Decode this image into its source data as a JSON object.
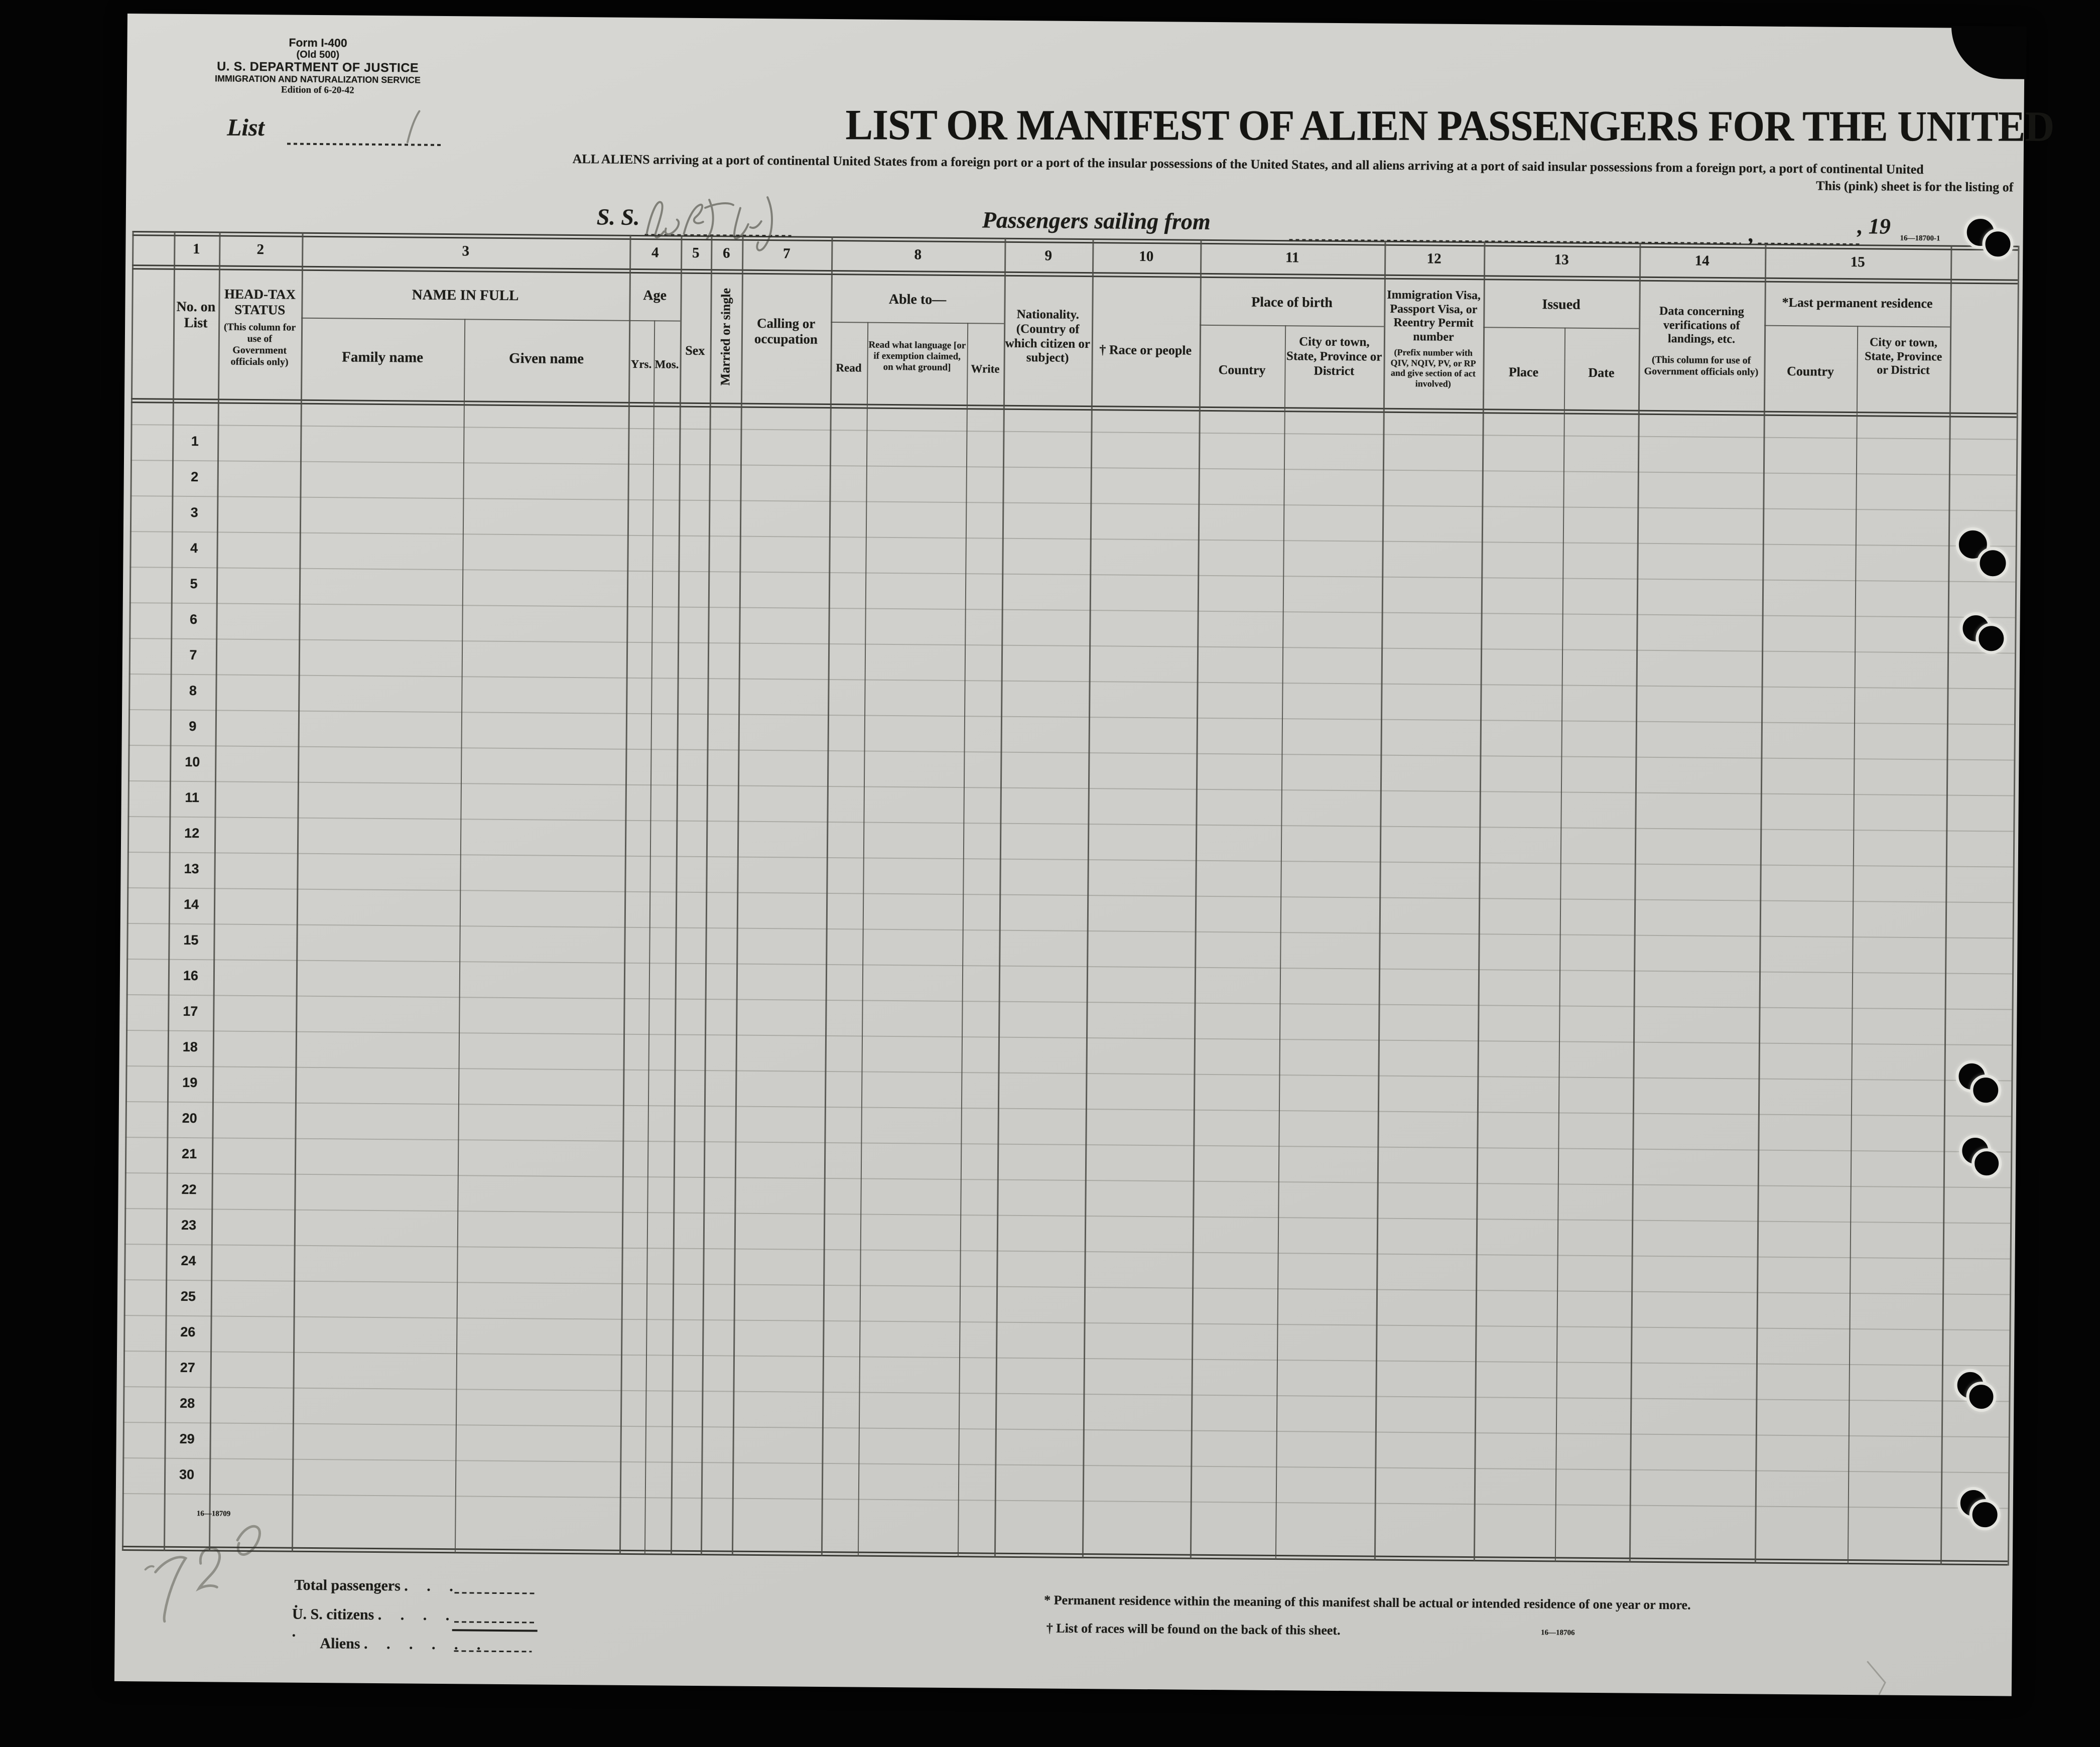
{
  "page": {
    "form_block": {
      "form_number": "Form I-400",
      "old_number": "(Old 500)",
      "department": "U. S. DEPARTMENT OF JUSTICE",
      "service": "IMMIGRATION AND NATURALIZATION SERVICE",
      "edition": "Edition of 6-20-42"
    },
    "list_line": {
      "label": "List",
      "handwritten_value": "1"
    },
    "title": "LIST OR MANIFEST OF ALIEN PASSENGERS FOR THE UNITED",
    "subtitle_line1": "ALL ALIENS arriving at a port of continental United States from a foreign port or a port of the insular possessions of the United States, and all aliens arriving at a port of said insular possessions from a foreign port, a port of continental United",
    "subtitle_line2": "This (pink) sheet is for the listing of",
    "sailing_line": {
      "ss_label": "S. S.",
      "ship_name_handwritten": "(illegible handwriting)",
      "passengers_label": "Passengers sailing from",
      "comma": ",",
      "year_prefix": ", 19"
    },
    "plate_numbers": {
      "top_right": "16—18700-1",
      "bottom_left": "16—18709",
      "bottom_right": "16—18706"
    }
  },
  "table": {
    "columns": [
      {
        "num": "1",
        "title": "No. on List"
      },
      {
        "num": "2",
        "title": "HEAD-TAX STATUS",
        "note": "(This column for use of Government officials only)"
      },
      {
        "num": "3",
        "group": "NAME IN FULL",
        "subs": [
          "Family name",
          "Given name"
        ]
      },
      {
        "num": "4",
        "group": "Age",
        "subs": [
          "Yrs.",
          "Mos."
        ]
      },
      {
        "num": "5",
        "title": "Sex"
      },
      {
        "num": "6",
        "title": "Married or single"
      },
      {
        "num": "7",
        "title": "Calling or occupation"
      },
      {
        "num": "8",
        "group": "Able to—",
        "subs": [
          "Read",
          "Read what language [or if exemption claimed, on what ground]",
          "Write"
        ]
      },
      {
        "num": "9",
        "title": "Nationality. (Country of which citizen or subject)"
      },
      {
        "num": "10",
        "title": "† Race or people"
      },
      {
        "num": "11",
        "group": "Place of birth",
        "subs": [
          "Country",
          "City or town, State, Province or District"
        ]
      },
      {
        "num": "12",
        "title": "Immigration Visa, Passport Visa, or Reentry Permit number",
        "note": "(Prefix number with QIV, NQIV, PV, or RP and give section of act involved)"
      },
      {
        "num": "13",
        "group": "Issued",
        "subs": [
          "Place",
          "Date"
        ]
      },
      {
        "num": "14",
        "title": "Data concerning verifications of landings, etc.",
        "note": "(This column for use of Government officials only)"
      },
      {
        "num": "15",
        "group": "*Last permanent residence",
        "subs": [
          "Country",
          "City or town, State, Province or District"
        ]
      }
    ],
    "row_numbers": [
      "1",
      "2",
      "3",
      "4",
      "5",
      "6",
      "7",
      "8",
      "9",
      "10",
      "11",
      "12",
      "13",
      "14",
      "15",
      "16",
      "17",
      "18",
      "19",
      "20",
      "21",
      "22",
      "23",
      "24",
      "25",
      "26",
      "27",
      "28",
      "29",
      "30"
    ]
  },
  "footer": {
    "totals": [
      {
        "label": "Total passengers",
        "dots": ". . . ."
      },
      {
        "label": "U. S. citizens",
        "dots": ". . . . ."
      },
      {
        "label": "Aliens",
        "dots": ". . . . . ."
      }
    ],
    "footnote_star": "* Permanent residence within the meaning of this manifest shall be actual or intended residence of one year or more.",
    "footnote_dagger": "† List of races will be found on the back of this sheet.",
    "handwritten_tally": "720"
  },
  "colors": {
    "paper": "#cfcfcb",
    "ink": "#1c1c18",
    "background": "#040404",
    "pencil": "#85857d",
    "grid_line": "#4b4b45",
    "row_line": "#93938c"
  }
}
